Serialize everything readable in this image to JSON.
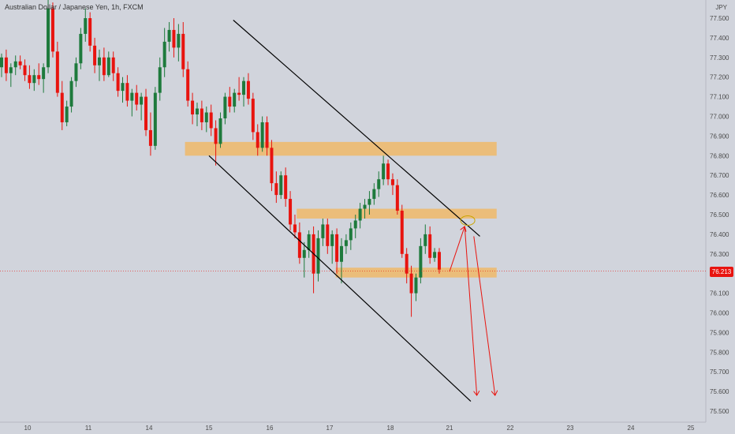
{
  "chart_data": {
    "type": "candlestick",
    "title": "Australian Dollar / Japanese Yen, 1h, FXCM",
    "currency": "JPY",
    "current_price": "76.213",
    "colors": {
      "up": "#1e7a3c",
      "down": "#e8140f",
      "zone": "#f0b869",
      "channel": "#000000",
      "projection": "#e8140f",
      "price_line": "#e8140f",
      "background": "#d1d4dc"
    },
    "y_ticks": [
      "77.500",
      "77.400",
      "77.300",
      "77.200",
      "77.100",
      "77.000",
      "76.900",
      "76.800",
      "76.700",
      "76.600",
      "76.500",
      "76.400",
      "76.300",
      "76.200",
      "76.100",
      "76.000",
      "75.900",
      "75.800",
      "75.700",
      "75.600",
      "75.500"
    ],
    "x_ticks": [
      "10",
      "11",
      "14",
      "15",
      "16",
      "17",
      "18",
      "21",
      "22",
      "23",
      "24",
      "25"
    ],
    "ylim": [
      75.47,
      77.55
    ],
    "zones": [
      [
        76.8,
        76.87
      ],
      [
        76.48,
        76.53
      ],
      [
        76.18,
        76.23
      ]
    ],
    "channel": {
      "upper": [
        [
          15.4,
          77.49
        ],
        [
          21.5,
          76.39
        ]
      ],
      "lower": [
        [
          15.0,
          76.8
        ],
        [
          21.35,
          75.55
        ]
      ]
    },
    "projection": {
      "rise": [
        [
          21.0,
          76.21
        ],
        [
          21.25,
          76.44
        ]
      ],
      "drops": [
        [
          [
            21.25,
            76.44
          ],
          [
            21.45,
            75.58
          ]
        ],
        [
          [
            21.4,
            76.39
          ],
          [
            21.75,
            75.58
          ]
        ]
      ],
      "marker": [
        21.3,
        76.47
      ]
    },
    "candles": [
      {
        "o": 77.25,
        "h": 77.32,
        "l": 77.2,
        "c": 77.3
      },
      {
        "o": 77.3,
        "h": 77.34,
        "l": 77.18,
        "c": 77.22
      },
      {
        "o": 77.22,
        "h": 77.27,
        "l": 77.15,
        "c": 77.25
      },
      {
        "o": 77.25,
        "h": 77.31,
        "l": 77.21,
        "c": 77.28
      },
      {
        "o": 77.28,
        "h": 77.31,
        "l": 77.24,
        "c": 77.26
      },
      {
        "o": 77.26,
        "h": 77.29,
        "l": 77.18,
        "c": 77.21
      },
      {
        "o": 77.21,
        "h": 77.26,
        "l": 77.14,
        "c": 77.17
      },
      {
        "o": 77.17,
        "h": 77.24,
        "l": 77.13,
        "c": 77.21
      },
      {
        "o": 77.21,
        "h": 77.27,
        "l": 77.16,
        "c": 77.19
      },
      {
        "o": 77.19,
        "h": 77.27,
        "l": 77.12,
        "c": 77.25
      },
      {
        "o": 77.25,
        "h": 77.62,
        "l": 77.22,
        "c": 77.55
      },
      {
        "o": 77.55,
        "h": 77.58,
        "l": 77.3,
        "c": 77.33
      },
      {
        "o": 77.33,
        "h": 77.38,
        "l": 77.1,
        "c": 77.12
      },
      {
        "o": 77.12,
        "h": 77.18,
        "l": 76.93,
        "c": 76.97
      },
      {
        "o": 76.97,
        "h": 77.08,
        "l": 76.95,
        "c": 77.05
      },
      {
        "o": 77.05,
        "h": 77.2,
        "l": 77.02,
        "c": 77.18
      },
      {
        "o": 77.18,
        "h": 77.3,
        "l": 77.15,
        "c": 77.27
      },
      {
        "o": 77.27,
        "h": 77.45,
        "l": 77.24,
        "c": 77.42
      },
      {
        "o": 77.42,
        "h": 77.55,
        "l": 77.38,
        "c": 77.5
      },
      {
        "o": 77.5,
        "h": 77.53,
        "l": 77.33,
        "c": 77.36
      },
      {
        "o": 77.36,
        "h": 77.4,
        "l": 77.22,
        "c": 77.26
      },
      {
        "o": 77.26,
        "h": 77.34,
        "l": 77.18,
        "c": 77.3
      },
      {
        "o": 77.3,
        "h": 77.35,
        "l": 77.18,
        "c": 77.21
      },
      {
        "o": 77.21,
        "h": 77.33,
        "l": 77.2,
        "c": 77.3
      },
      {
        "o": 77.3,
        "h": 77.33,
        "l": 77.18,
        "c": 77.22
      },
      {
        "o": 77.22,
        "h": 77.25,
        "l": 77.1,
        "c": 77.13
      },
      {
        "o": 77.13,
        "h": 77.2,
        "l": 77.07,
        "c": 77.17
      },
      {
        "o": 77.17,
        "h": 77.21,
        "l": 77.05,
        "c": 77.08
      },
      {
        "o": 77.08,
        "h": 77.14,
        "l": 77.0,
        "c": 77.12
      },
      {
        "o": 77.12,
        "h": 77.16,
        "l": 77.03,
        "c": 77.06
      },
      {
        "o": 77.06,
        "h": 77.12,
        "l": 76.98,
        "c": 77.1
      },
      {
        "o": 77.1,
        "h": 77.14,
        "l": 76.9,
        "c": 76.93
      },
      {
        "o": 76.93,
        "h": 77.02,
        "l": 76.8,
        "c": 76.85
      },
      {
        "o": 76.85,
        "h": 77.15,
        "l": 76.83,
        "c": 77.12
      },
      {
        "o": 77.12,
        "h": 77.3,
        "l": 77.08,
        "c": 77.25
      },
      {
        "o": 77.25,
        "h": 77.45,
        "l": 77.2,
        "c": 77.38
      },
      {
        "o": 77.38,
        "h": 77.48,
        "l": 77.33,
        "c": 77.44
      },
      {
        "o": 77.44,
        "h": 77.5,
        "l": 77.3,
        "c": 77.35
      },
      {
        "o": 77.35,
        "h": 77.47,
        "l": 77.28,
        "c": 77.42
      },
      {
        "o": 77.42,
        "h": 77.48,
        "l": 77.2,
        "c": 77.24
      },
      {
        "o": 77.24,
        "h": 77.28,
        "l": 77.05,
        "c": 77.08
      },
      {
        "o": 77.08,
        "h": 77.12,
        "l": 76.96,
        "c": 77.01
      },
      {
        "o": 77.01,
        "h": 77.07,
        "l": 76.95,
        "c": 77.04
      },
      {
        "o": 77.04,
        "h": 77.08,
        "l": 76.93,
        "c": 76.97
      },
      {
        "o": 76.97,
        "h": 77.05,
        "l": 76.92,
        "c": 77.02
      },
      {
        "o": 77.02,
        "h": 77.06,
        "l": 76.9,
        "c": 76.94
      },
      {
        "o": 76.94,
        "h": 76.98,
        "l": 76.75,
        "c": 76.86
      },
      {
        "o": 76.86,
        "h": 77.02,
        "l": 76.84,
        "c": 76.99
      },
      {
        "o": 76.99,
        "h": 77.12,
        "l": 76.96,
        "c": 77.1
      },
      {
        "o": 77.1,
        "h": 77.15,
        "l": 77.02,
        "c": 77.05
      },
      {
        "o": 77.05,
        "h": 77.14,
        "l": 77.02,
        "c": 77.12
      },
      {
        "o": 77.12,
        "h": 77.2,
        "l": 77.08,
        "c": 77.11
      },
      {
        "o": 77.11,
        "h": 77.2,
        "l": 77.05,
        "c": 77.18
      },
      {
        "o": 77.18,
        "h": 77.22,
        "l": 77.06,
        "c": 77.09
      },
      {
        "o": 77.09,
        "h": 77.12,
        "l": 76.88,
        "c": 76.92
      },
      {
        "o": 76.92,
        "h": 76.96,
        "l": 76.8,
        "c": 76.84
      },
      {
        "o": 76.84,
        "h": 77.0,
        "l": 76.82,
        "c": 76.97
      },
      {
        "o": 76.97,
        "h": 77.0,
        "l": 76.8,
        "c": 76.84
      },
      {
        "o": 76.84,
        "h": 76.88,
        "l": 76.62,
        "c": 76.66
      },
      {
        "o": 76.66,
        "h": 76.72,
        "l": 76.56,
        "c": 76.6
      },
      {
        "o": 76.6,
        "h": 76.72,
        "l": 76.58,
        "c": 76.7
      },
      {
        "o": 76.7,
        "h": 76.74,
        "l": 76.54,
        "c": 76.58
      },
      {
        "o": 76.58,
        "h": 76.62,
        "l": 76.42,
        "c": 76.45
      },
      {
        "o": 76.45,
        "h": 76.5,
        "l": 76.38,
        "c": 76.41
      },
      {
        "o": 76.41,
        "h": 76.46,
        "l": 76.25,
        "c": 76.28
      },
      {
        "o": 76.28,
        "h": 76.36,
        "l": 76.18,
        "c": 76.32
      },
      {
        "o": 76.32,
        "h": 76.42,
        "l": 76.28,
        "c": 76.4
      },
      {
        "o": 76.4,
        "h": 76.44,
        "l": 76.1,
        "c": 76.2
      },
      {
        "o": 76.2,
        "h": 76.42,
        "l": 76.16,
        "c": 76.38
      },
      {
        "o": 76.38,
        "h": 76.48,
        "l": 76.34,
        "c": 76.45
      },
      {
        "o": 76.45,
        "h": 76.48,
        "l": 76.3,
        "c": 76.34
      },
      {
        "o": 76.34,
        "h": 76.42,
        "l": 76.25,
        "c": 76.4
      },
      {
        "o": 76.4,
        "h": 76.43,
        "l": 76.2,
        "c": 76.26
      },
      {
        "o": 76.26,
        "h": 76.38,
        "l": 76.15,
        "c": 76.34
      },
      {
        "o": 76.34,
        "h": 76.4,
        "l": 76.3,
        "c": 76.37
      },
      {
        "o": 76.37,
        "h": 76.46,
        "l": 76.32,
        "c": 76.43
      },
      {
        "o": 76.43,
        "h": 76.5,
        "l": 76.38,
        "c": 76.47
      },
      {
        "o": 76.47,
        "h": 76.56,
        "l": 76.43,
        "c": 76.53
      },
      {
        "o": 76.53,
        "h": 76.58,
        "l": 76.48,
        "c": 76.55
      },
      {
        "o": 76.55,
        "h": 76.62,
        "l": 76.5,
        "c": 76.58
      },
      {
        "o": 76.58,
        "h": 76.66,
        "l": 76.55,
        "c": 76.63
      },
      {
        "o": 76.63,
        "h": 76.72,
        "l": 76.59,
        "c": 76.68
      },
      {
        "o": 76.68,
        "h": 76.8,
        "l": 76.65,
        "c": 76.76
      },
      {
        "o": 76.76,
        "h": 76.78,
        "l": 76.65,
        "c": 76.68
      },
      {
        "o": 76.68,
        "h": 76.71,
        "l": 76.6,
        "c": 76.65
      },
      {
        "o": 76.65,
        "h": 76.68,
        "l": 76.5,
        "c": 76.52
      },
      {
        "o": 76.52,
        "h": 76.55,
        "l": 76.28,
        "c": 76.3
      },
      {
        "o": 76.3,
        "h": 76.33,
        "l": 76.15,
        "c": 76.2
      },
      {
        "o": 76.2,
        "h": 76.24,
        "l": 75.98,
        "c": 76.1
      },
      {
        "o": 76.1,
        "h": 76.2,
        "l": 76.06,
        "c": 76.18
      },
      {
        "o": 76.18,
        "h": 76.38,
        "l": 76.15,
        "c": 76.34
      },
      {
        "o": 76.34,
        "h": 76.45,
        "l": 76.3,
        "c": 76.4
      },
      {
        "o": 76.4,
        "h": 76.44,
        "l": 76.25,
        "c": 76.28
      },
      {
        "o": 76.28,
        "h": 76.33,
        "l": 76.26,
        "c": 76.31
      },
      {
        "o": 76.31,
        "h": 76.33,
        "l": 76.2,
        "c": 76.22
      }
    ]
  }
}
